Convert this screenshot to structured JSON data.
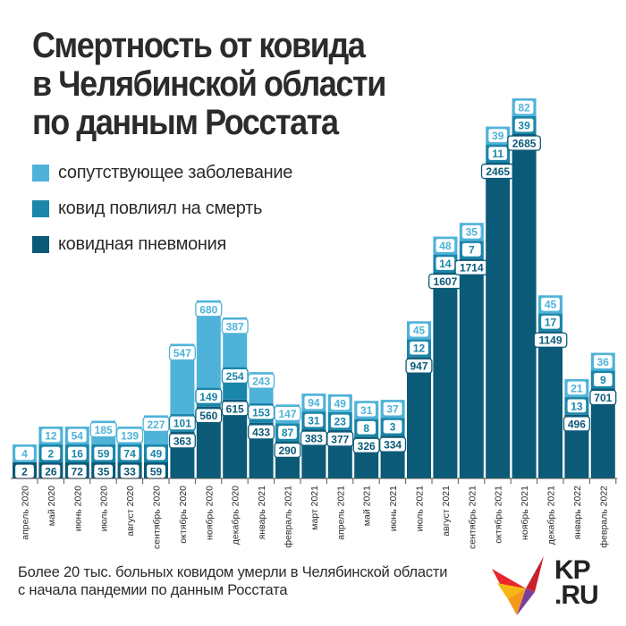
{
  "title_lines": [
    "Смертность от ковида",
    "в Челябинской области",
    "по данным Росстата"
  ],
  "footnote_lines": [
    "Более 20 тыс. больных ковидом умерли в Челябинской области",
    "с начала пандемии по данным Росстата"
  ],
  "logo": {
    "line1": "KP",
    "line2": ".RU"
  },
  "colors": {
    "comorbidity": "#4fb3d9",
    "covid_contributed": "#1a86aa",
    "covid_pneumonia": "#0b5a78",
    "text": "#2b2b2b",
    "axis": "#555555"
  },
  "legend": [
    {
      "label": "сопутствующее заболевание",
      "color": "#4fb3d9"
    },
    {
      "label": "ковид повлиял на смерть",
      "color": "#1a86aa"
    },
    {
      "label": "ковидная пневмония",
      "color": "#0b5a78"
    }
  ],
  "chart_data": {
    "type": "bar",
    "stacked": true,
    "title": "Смертность от ковида в Челябинской области по данным Росстата",
    "xlabel": "",
    "ylabel": "",
    "categories": [
      "апрель 2020",
      "май 2020",
      "июнь 2020",
      "июль 2020",
      "август 2020",
      "сентябрь 2020",
      "октябрь 2020",
      "ноябрь 2020",
      "декабрь 2020",
      "январь 2021",
      "февраль 2021",
      "март 2021",
      "апрель 2021",
      "май 2021",
      "июнь 2021",
      "июль 2021",
      "август 2021",
      "сентябрь 2021",
      "октябрь 2021",
      "ноябрь 2021",
      "декабрь 2021",
      "январь 2022",
      "февраль 2022"
    ],
    "series": [
      {
        "name": "ковидная пневмония",
        "values": [
          2,
          26,
          72,
          35,
          33,
          59,
          363,
          560,
          615,
          433,
          290,
          383,
          377,
          326,
          334,
          947,
          1607,
          1714,
          2465,
          2685,
          1149,
          496,
          701
        ]
      },
      {
        "name": "ковид повлиял на смерть",
        "values": [
          null,
          2,
          16,
          59,
          74,
          49,
          101,
          149,
          254,
          153,
          87,
          31,
          23,
          8,
          3,
          12,
          14,
          7,
          11,
          39,
          17,
          13,
          9
        ]
      },
      {
        "name": "сопутствующее заболевание",
        "values": [
          4,
          12,
          54,
          185,
          139,
          227,
          547,
          680,
          387,
          243,
          147,
          94,
          49,
          31,
          37,
          45,
          48,
          35,
          39,
          82,
          45,
          21,
          36
        ]
      }
    ]
  }
}
